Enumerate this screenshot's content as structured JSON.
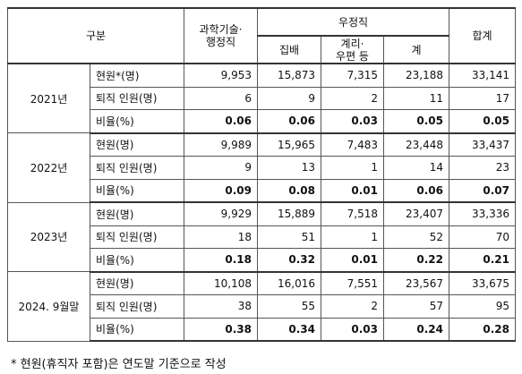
{
  "table": {
    "header": {
      "category": "구분",
      "science_admin": "과학기술·\n행정직",
      "postal": "우정직",
      "delivery": "집배",
      "accounting": "계리·\n우편 등",
      "subtotal": "계",
      "total": "합계"
    },
    "groups": [
      {
        "label": "2021년",
        "rows": [
          {
            "label": "현원*(명)",
            "cells": [
              "9,953",
              "15,873",
              "7,315",
              "23,188",
              "33,141"
            ]
          },
          {
            "label": "퇴직 인원(명)",
            "cells": [
              "6",
              "9",
              "2",
              "11",
              "17"
            ]
          },
          {
            "label": "비율(%)",
            "cells": [
              "0.06",
              "0.06",
              "0.03",
              "0.05",
              "0.05"
            ]
          }
        ]
      },
      {
        "label": "2022년",
        "rows": [
          {
            "label": "현원(명)",
            "cells": [
              "9,989",
              "15,965",
              "7,483",
              "23,448",
              "33,437"
            ]
          },
          {
            "label": "퇴직 인원(명)",
            "cells": [
              "9",
              "13",
              "1",
              "14",
              "23"
            ]
          },
          {
            "label": "비율(%)",
            "cells": [
              "0.09",
              "0.08",
              "0.01",
              "0.06",
              "0.07"
            ]
          }
        ]
      },
      {
        "label": "2023년",
        "rows": [
          {
            "label": "현원(명)",
            "cells": [
              "9,929",
              "15,889",
              "7,518",
              "23,407",
              "33,336"
            ]
          },
          {
            "label": "퇴직 인원(명)",
            "cells": [
              "18",
              "51",
              "1",
              "52",
              "70"
            ]
          },
          {
            "label": "비율(%)",
            "cells": [
              "0.18",
              "0.32",
              "0.01",
              "0.22",
              "0.21"
            ]
          }
        ]
      },
      {
        "label": "2024. 9월말",
        "rows": [
          {
            "label": "현원(명)",
            "cells": [
              "10,108",
              "16,016",
              "7,551",
              "23,567",
              "33,675"
            ]
          },
          {
            "label": "퇴직 인원(명)",
            "cells": [
              "38",
              "55",
              "2",
              "57",
              "95"
            ]
          },
          {
            "label": "비율(%)",
            "cells": [
              "0.38",
              "0.34",
              "0.03",
              "0.24",
              "0.28"
            ]
          }
        ]
      }
    ]
  },
  "footnote": "* 현원(휴직자 포함)은 연도말 기준으로 작성"
}
